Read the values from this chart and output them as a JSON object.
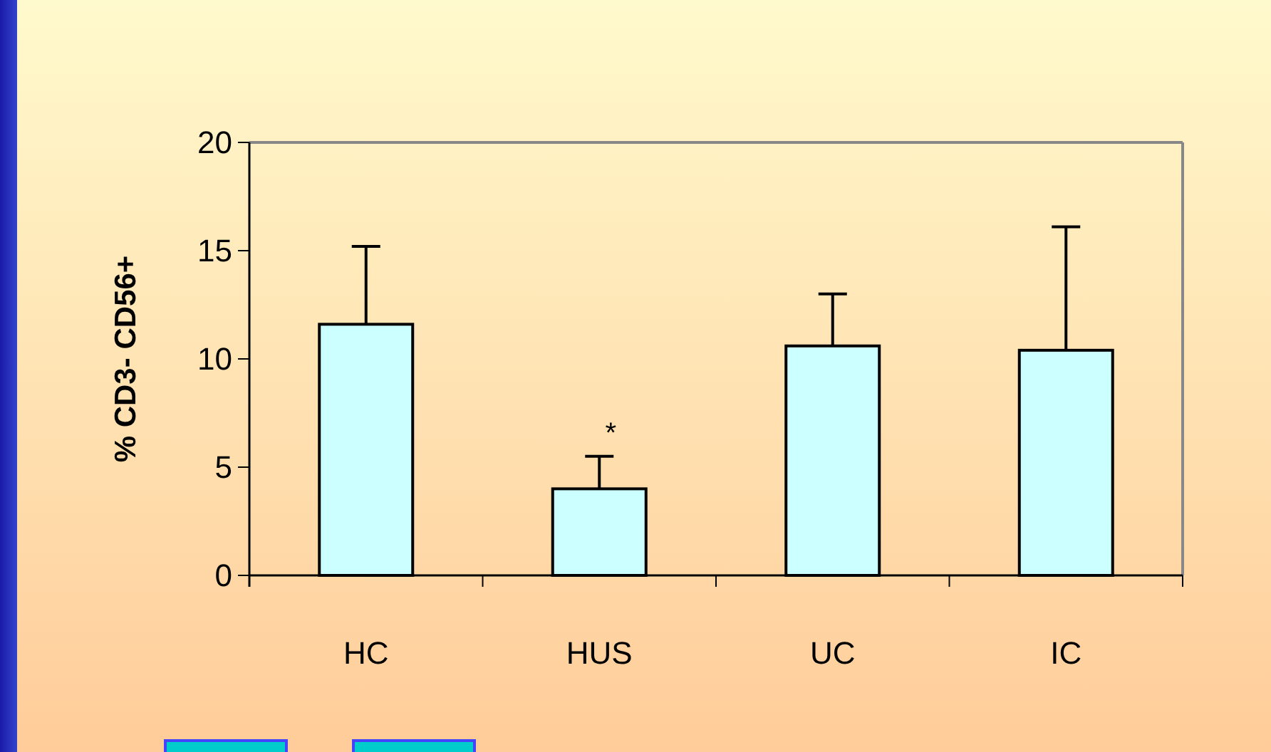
{
  "chart_data": {
    "type": "bar",
    "ylabel": "% CD3- CD56+",
    "categories": [
      "HC",
      "HUS",
      "UC",
      "IC"
    ],
    "values": [
      11.6,
      4.0,
      10.6,
      10.4
    ],
    "color": "#ccffff",
    "errors": [
      [
        11.6,
        15.2
      ],
      [
        4.0,
        5.5
      ],
      [
        10.6,
        13.0
      ],
      [
        10.4,
        16.1
      ]
    ],
    "ylim": [
      0,
      20
    ],
    "yticks": [
      0,
      5,
      10,
      15,
      20
    ],
    "grid": false,
    "annotations": [
      {
        "text": "*",
        "x": "HUS",
        "y": 5.5
      }
    ]
  }
}
